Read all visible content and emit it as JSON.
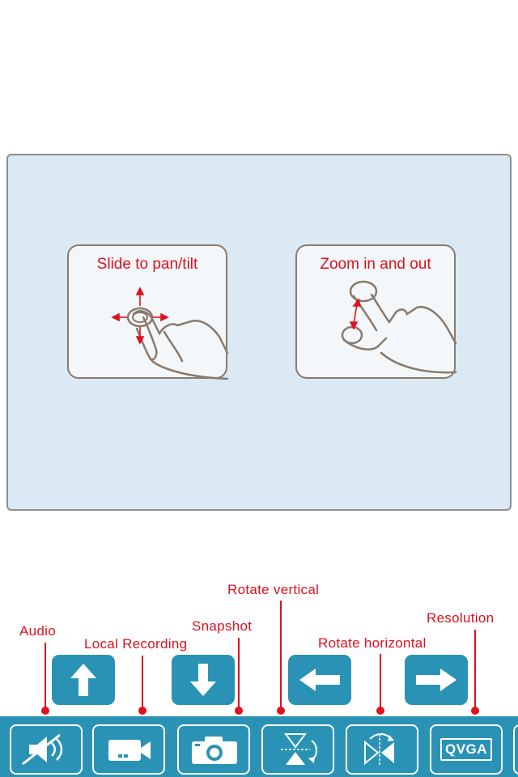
{
  "viewer": {
    "gestures": [
      {
        "title": "Slide to pan/tilt",
        "icon": "pan-tilt-gesture-icon"
      },
      {
        "title": "Zoom in and out",
        "icon": "pinch-zoom-gesture-icon"
      }
    ]
  },
  "annotations": {
    "audio": "Audio",
    "local_recording": "Local Recording",
    "snapshot": "Snapshot",
    "rotate_vertical": "Rotate vertical",
    "rotate_horizontal": "Rotate horizontal",
    "resolution": "Resolution"
  },
  "ptz_controls": [
    {
      "name": "up",
      "icon": "arrow-up-icon"
    },
    {
      "name": "down",
      "icon": "arrow-down-icon"
    },
    {
      "name": "left",
      "icon": "arrow-left-icon"
    },
    {
      "name": "right",
      "icon": "arrow-right-icon"
    }
  ],
  "toolbar": {
    "buttons": [
      {
        "name": "audio",
        "icon": "audio-muted-icon"
      },
      {
        "name": "local-recording",
        "icon": "video-camera-icon"
      },
      {
        "name": "snapshot",
        "icon": "camera-icon"
      },
      {
        "name": "rotate-vertical",
        "icon": "flip-vertical-icon"
      },
      {
        "name": "rotate-horizontal",
        "icon": "flip-horizontal-icon"
      },
      {
        "name": "resolution",
        "icon": "resolution-icon"
      }
    ],
    "resolution_label": "QVGA"
  },
  "colors": {
    "accent": "#2a93b5",
    "annotation": "#e0101e",
    "viewer_bg": "#dbe9f4"
  }
}
